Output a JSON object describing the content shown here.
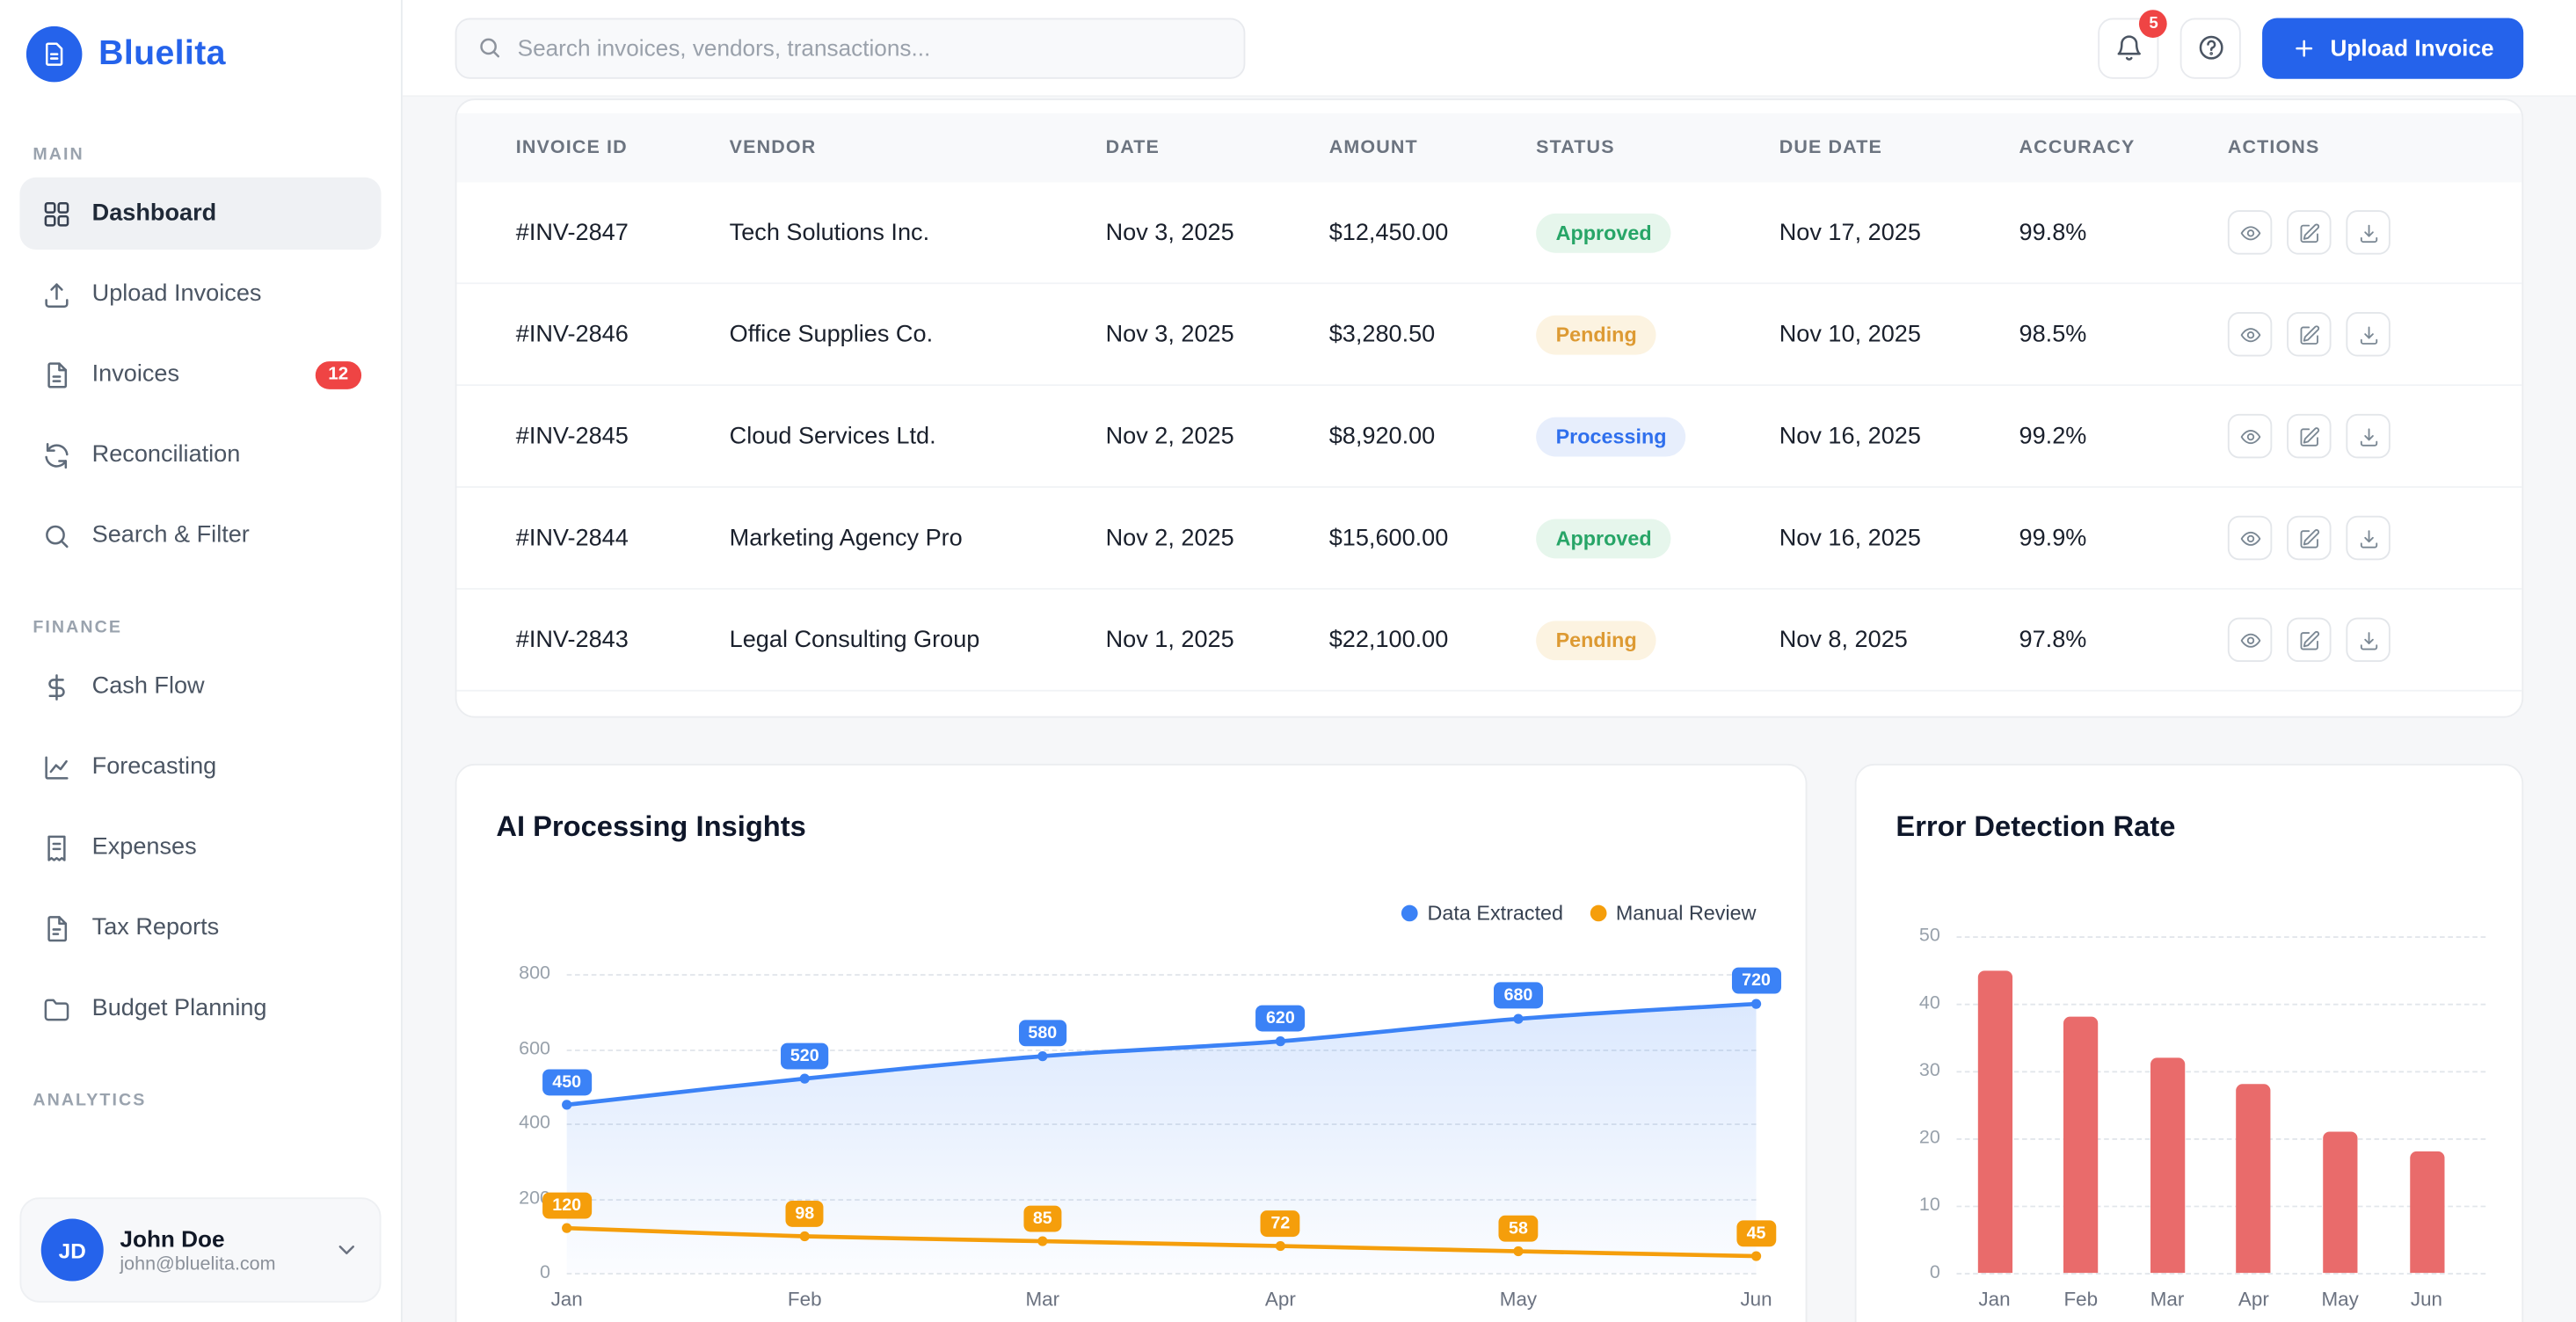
{
  "colors": {
    "primary": "#2563eb",
    "badge_red": "#ef4444",
    "status_approved_text": "#27a567",
    "status_pending_text": "#dd9a33",
    "status_processing_text": "#2f6fed",
    "line_blue": "#3b82f6",
    "line_orange": "#f59e0b",
    "bar_red": "#e96b6b"
  },
  "brand": {
    "name": "Bluelita"
  },
  "topbar": {
    "search_placeholder": "Search invoices, vendors, transactions...",
    "notification_count": "5",
    "upload_button_label": "Upload Invoice"
  },
  "sidebar": {
    "sections": [
      {
        "label": "MAIN",
        "items": [
          {
            "label": "Dashboard",
            "icon": "grid-icon",
            "active": true
          },
          {
            "label": "Upload Invoices",
            "icon": "upload-icon"
          },
          {
            "label": "Invoices",
            "icon": "invoice-icon",
            "badge": "12"
          },
          {
            "label": "Reconciliation",
            "icon": "sync-icon"
          },
          {
            "label": "Search & Filter",
            "icon": "search-icon"
          }
        ]
      },
      {
        "label": "FINANCE",
        "items": [
          {
            "label": "Cash Flow",
            "icon": "dollar-icon"
          },
          {
            "label": "Forecasting",
            "icon": "trend-icon"
          },
          {
            "label": "Expenses",
            "icon": "receipt-icon"
          },
          {
            "label": "Tax Reports",
            "icon": "tax-icon"
          },
          {
            "label": "Budget Planning",
            "icon": "budget-icon"
          }
        ]
      },
      {
        "label": "ANALYTICS",
        "items": []
      }
    ],
    "user": {
      "initials": "JD",
      "name": "John Doe",
      "email": "john@bluelita.com"
    }
  },
  "invoice_table": {
    "columns": [
      "INVOICE ID",
      "VENDOR",
      "DATE",
      "AMOUNT",
      "STATUS",
      "DUE DATE",
      "ACCURACY",
      "ACTIONS"
    ],
    "row_action_icons": [
      "view",
      "edit",
      "download"
    ],
    "rows": [
      {
        "id": "#INV-2847",
        "vendor": "Tech Solutions Inc.",
        "date": "Nov 3, 2025",
        "amount": "$12,450.00",
        "status": "Approved",
        "due": "Nov 17, 2025",
        "accuracy": "99.8%"
      },
      {
        "id": "#INV-2846",
        "vendor": "Office Supplies Co.",
        "date": "Nov 3, 2025",
        "amount": "$3,280.50",
        "status": "Pending",
        "due": "Nov 10, 2025",
        "accuracy": "98.5%"
      },
      {
        "id": "#INV-2845",
        "vendor": "Cloud Services Ltd.",
        "date": "Nov 2, 2025",
        "amount": "$8,920.00",
        "status": "Processing",
        "due": "Nov 16, 2025",
        "accuracy": "99.2%"
      },
      {
        "id": "#INV-2844",
        "vendor": "Marketing Agency Pro",
        "date": "Nov 2, 2025",
        "amount": "$15,600.00",
        "status": "Approved",
        "due": "Nov 16, 2025",
        "accuracy": "99.9%"
      },
      {
        "id": "#INV-2843",
        "vendor": "Legal Consulting Group",
        "date": "Nov 1, 2025",
        "amount": "$22,100.00",
        "status": "Pending",
        "due": "Nov 8, 2025",
        "accuracy": "97.8%"
      }
    ]
  },
  "chart_data": [
    {
      "type": "line",
      "title": "AI Processing Insights",
      "x": [
        "Jan",
        "Feb",
        "Mar",
        "Apr",
        "May",
        "Jun"
      ],
      "series": [
        {
          "name": "Data Extracted",
          "color": "#3b82f6",
          "values": [
            450,
            520,
            580,
            620,
            680,
            720
          ],
          "area": true
        },
        {
          "name": "Manual Review",
          "color": "#f59e0b",
          "values": [
            120,
            98,
            85,
            72,
            58,
            45
          ],
          "area": false
        }
      ],
      "ylim": [
        0,
        800
      ],
      "yticks": [
        0,
        200,
        400,
        600,
        800
      ],
      "grid": "dashed-horizontal",
      "legend_position": "top-right",
      "point_labels": true
    },
    {
      "type": "bar",
      "title": "Error Detection Rate",
      "categories": [
        "Jan",
        "Feb",
        "Mar",
        "Apr",
        "May",
        "Jun"
      ],
      "values": [
        45,
        38,
        32,
        28,
        21,
        18
      ],
      "bar_color": "#e96b6b",
      "ylim": [
        0,
        50
      ],
      "yticks": [
        0,
        10,
        20,
        30,
        40,
        50
      ],
      "grid": "dashed-horizontal",
      "legend_position": "none"
    }
  ]
}
